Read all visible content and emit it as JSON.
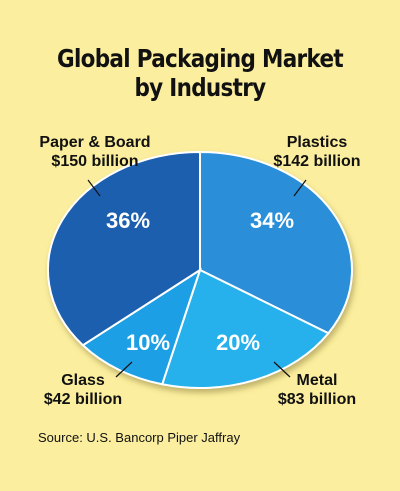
{
  "chart_data": {
    "type": "pie",
    "title": [
      "Global Packaging Market",
      "by Industry"
    ],
    "slices": [
      {
        "name": "Paper & Board",
        "value_label": "$150 billion",
        "value": 150,
        "percent": 36,
        "percent_label": "36%",
        "color": "#1f5fae"
      },
      {
        "name": "Plastics",
        "value_label": "$142 billion",
        "value": 142,
        "percent": 34,
        "percent_label": "34%",
        "color": "#2a8fd8"
      },
      {
        "name": "Metal",
        "value_label": "$83 billion",
        "value": 83,
        "percent": 20,
        "percent_label": "20%",
        "color": "#25b0ec"
      },
      {
        "name": "Glass",
        "value_label": "$42 billion",
        "value": 42,
        "percent": 10,
        "percent_label": "10%",
        "color": "#1c9fe4"
      }
    ],
    "source": "Source: U.S. Bancorp Piper Jaffray"
  }
}
